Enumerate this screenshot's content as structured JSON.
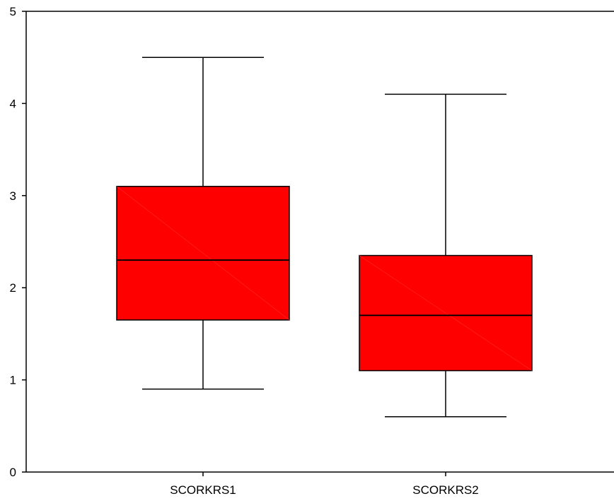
{
  "chart_data": {
    "type": "boxplot",
    "title": "",
    "xlabel": "",
    "ylabel": "",
    "ylim": [
      0,
      5
    ],
    "yticks": [
      0,
      1,
      2,
      3,
      4,
      5
    ],
    "grid": false,
    "legend": "none",
    "box_color": "#ff0000",
    "line_color": "#000000",
    "categories": [
      "SCORKRS1",
      "SCORKRS2"
    ],
    "boxes": [
      {
        "category": "SCORKRS1",
        "whisker_low": 0.9,
        "q1": 1.65,
        "median": 2.3,
        "q3": 3.1,
        "whisker_high": 4.5
      },
      {
        "category": "SCORKRS2",
        "whisker_low": 0.6,
        "q1": 1.1,
        "median": 1.7,
        "q3": 2.35,
        "whisker_high": 4.1
      }
    ]
  }
}
